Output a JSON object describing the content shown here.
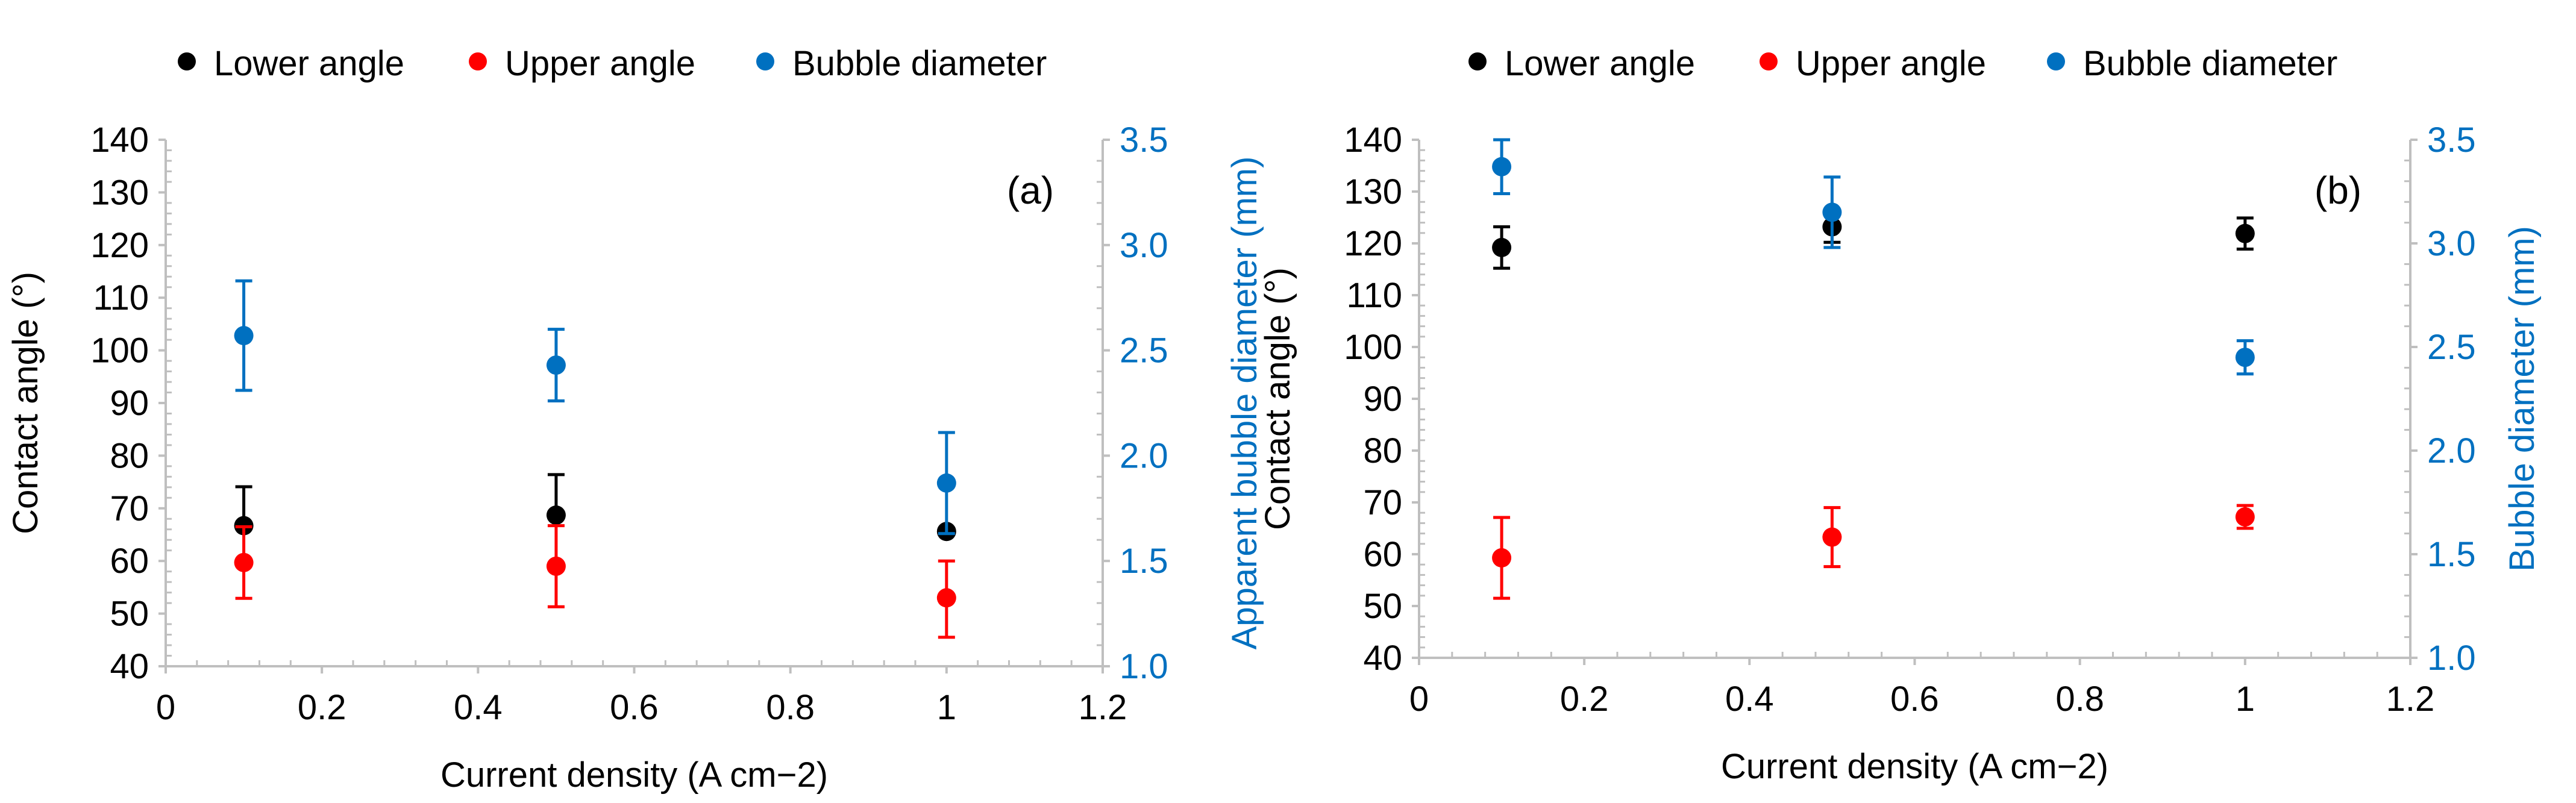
{
  "colors": {
    "lower": "#000000",
    "upper": "#ff0000",
    "bubble": "#0070c0",
    "axis": "#bfbfbf",
    "text": "#000000"
  },
  "chart_data": [
    {
      "type": "scatter",
      "panel_label": "(a)",
      "xlabel": "Current density (A cm−2)",
      "ylabel": "Contact angle (°)",
      "y2label": "Apparent bubble diameter (mm)",
      "xlim": [
        0,
        1.2
      ],
      "ylim": [
        40,
        140
      ],
      "y2lim": [
        1.0,
        3.5
      ],
      "xticks": [
        "0",
        "0.2",
        "0.4",
        "0.6",
        "0.8",
        "1",
        "1.2"
      ],
      "yticks": [
        "40",
        "50",
        "60",
        "70",
        "80",
        "90",
        "100",
        "110",
        "120",
        "130",
        "140"
      ],
      "y2ticks": [
        "1.0",
        "1.5",
        "2.0",
        "2.5",
        "3.0",
        "3.5"
      ],
      "legend": [
        "Lower angle",
        "Upper angle",
        "Bubble diameter"
      ],
      "series": [
        {
          "name": "Lower angle",
          "axis": "left",
          "color_key": "lower",
          "x": [
            0.1,
            0.5,
            1.0
          ],
          "y": [
            66.7,
            68.7,
            65.6
          ],
          "err_hi": [
            7.4,
            7.7,
            0.0
          ],
          "err_lo": [
            0.0,
            0.0,
            0.0
          ]
        },
        {
          "name": "Upper angle",
          "axis": "left",
          "color_key": "upper",
          "x": [
            0.1,
            0.5,
            1.0
          ],
          "y": [
            59.7,
            59.0,
            53.0
          ],
          "err_hi": [
            6.8,
            7.7,
            7.0
          ],
          "err_lo": [
            6.8,
            7.7,
            7.5
          ]
        },
        {
          "name": "Bubble diameter",
          "axis": "right",
          "color_key": "bubble",
          "x": [
            0.1,
            0.5,
            1.0
          ],
          "y": [
            2.57,
            2.43,
            1.87
          ],
          "err_hi": [
            0.26,
            0.17,
            0.24
          ],
          "err_lo": [
            0.26,
            0.17,
            0.24
          ]
        }
      ]
    },
    {
      "type": "scatter",
      "panel_label": "(b)",
      "xlabel": "Current density (A cm−2)",
      "ylabel": "Contact angle (°)",
      "y2label": "Bubble diameter (mm)",
      "xlim": [
        0,
        1.2
      ],
      "ylim": [
        40,
        140
      ],
      "y2lim": [
        1.0,
        3.5
      ],
      "xticks": [
        "0",
        "0.2",
        "0.4",
        "0.6",
        "0.8",
        "1",
        "1.2"
      ],
      "yticks": [
        "40",
        "50",
        "60",
        "70",
        "80",
        "90",
        "100",
        "110",
        "120",
        "130",
        "140"
      ],
      "y2ticks": [
        "1.0",
        "1.5",
        "2.0",
        "2.5",
        "3.0",
        "3.5"
      ],
      "legend": [
        "Lower angle",
        "Upper angle",
        "Bubble diameter"
      ],
      "series": [
        {
          "name": "Lower angle",
          "axis": "left",
          "color_key": "lower",
          "x": [
            0.1,
            0.5,
            1.0
          ],
          "y": [
            119.2,
            123.2,
            121.9
          ],
          "err_hi": [
            4.0,
            3.0,
            3.0
          ],
          "err_lo": [
            4.0,
            3.0,
            3.0
          ]
        },
        {
          "name": "Upper angle",
          "axis": "left",
          "color_key": "upper",
          "x": [
            0.1,
            0.5,
            1.0
          ],
          "y": [
            59.3,
            63.3,
            67.2
          ],
          "err_hi": [
            7.8,
            5.7,
            2.2
          ],
          "err_lo": [
            7.8,
            5.7,
            2.2
          ]
        },
        {
          "name": "Bubble diameter",
          "axis": "right",
          "color_key": "bubble",
          "x": [
            0.1,
            0.5,
            1.0
          ],
          "y": [
            3.37,
            3.15,
            2.45
          ],
          "err_hi": [
            0.13,
            0.17,
            0.08
          ],
          "err_lo": [
            0.13,
            0.17,
            0.08
          ]
        }
      ]
    }
  ]
}
